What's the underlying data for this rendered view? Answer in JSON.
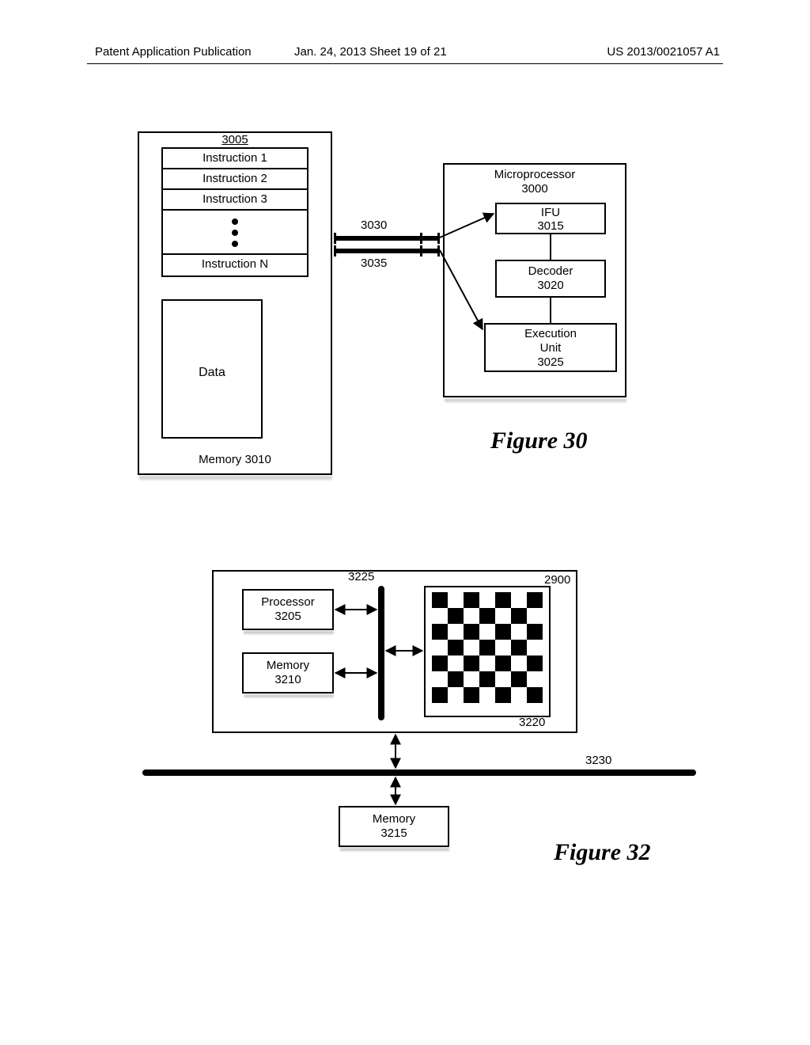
{
  "header": {
    "left": "Patent Application Publication",
    "mid": "Jan. 24, 2013  Sheet 19 of 21",
    "right": "US 2013/0021057 A1"
  },
  "fig30": {
    "caption": "Figure 30",
    "memory": {
      "label": "Memory 3010",
      "id": "3005",
      "instructions": [
        "Instruction 1",
        "Instruction 2",
        "Instruction 3",
        "Instruction N"
      ],
      "data_label": "Data"
    },
    "microprocessor": {
      "title_l1": "Microprocessor",
      "title_l2": "3000",
      "ifu_l1": "IFU",
      "ifu_l2": "3015",
      "dec_l1": "Decoder",
      "dec_l2": "3020",
      "exu_l1": "Execution",
      "exu_l2": "Unit",
      "exu_l3": "3025"
    },
    "bus_top": "3030",
    "bus_bot": "3035"
  },
  "fig32": {
    "caption": "Figure 32",
    "system_id": "2900",
    "processor_l1": "Processor",
    "processor_l2": "3205",
    "mem1_l1": "Memory",
    "mem1_l2": "3210",
    "grid_id": "3220",
    "bus_v": "3225",
    "bus_h": "3230",
    "mem2_l1": "Memory",
    "mem2_l2": "3215"
  },
  "style": {
    "border_color": "#000000",
    "background": "#ffffff",
    "header_fontsize": 15,
    "label_fontsize": 15,
    "caption_fontsize": 30,
    "caption_font": "Times New Roman",
    "bus_thickness": 6,
    "checker_grid": 7
  }
}
